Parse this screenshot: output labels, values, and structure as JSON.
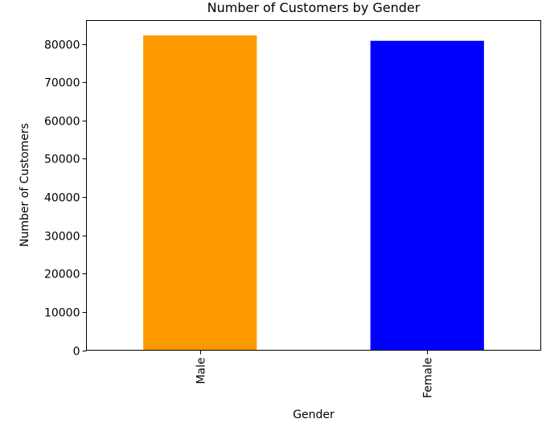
{
  "chart_data": {
    "type": "bar",
    "title": "Number of Customers by Gender",
    "xlabel": "Gender",
    "ylabel": "Number of Customers",
    "categories": [
      "Male",
      "Female"
    ],
    "values": [
      82200,
      80800
    ],
    "colors": [
      "#ff9900",
      "#0000ff"
    ],
    "ylim": [
      0,
      86100
    ],
    "yticks": [
      0,
      10000,
      20000,
      30000,
      40000,
      50000,
      60000,
      70000,
      80000
    ],
    "ytick_labels": [
      "0",
      "10000",
      "20000",
      "30000",
      "40000",
      "50000",
      "60000",
      "70000",
      "80000"
    ],
    "grid": false,
    "legend": "none"
  }
}
